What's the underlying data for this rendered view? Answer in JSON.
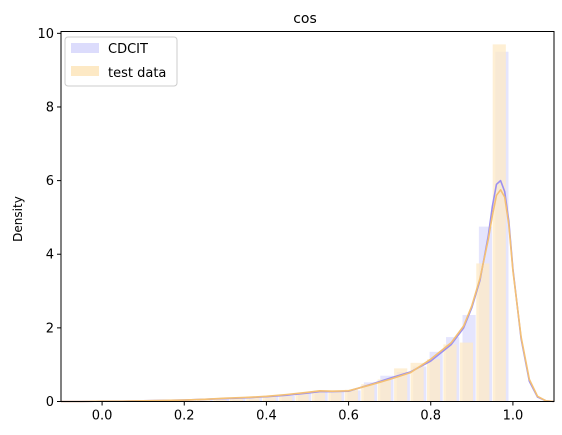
{
  "chart_data": {
    "type": "histogram-with-density",
    "title": "cos",
    "xlabel": "",
    "ylabel": "Density",
    "xlim": [
      -0.1,
      1.1
    ],
    "ylim": [
      0,
      10.05
    ],
    "xticks": [
      0.0,
      0.2,
      0.4,
      0.6,
      0.8,
      1.0
    ],
    "xtick_labels": [
      "0.0",
      "0.2",
      "0.4",
      "0.6",
      "0.8",
      "1.0"
    ],
    "yticks": [
      0,
      2,
      4,
      6,
      8,
      10
    ],
    "ytick_labels": [
      "0",
      "2",
      "4",
      "6",
      "8",
      "10"
    ],
    "grid": false,
    "legend_position": "upper-left",
    "bin_edges": [
      -0.09,
      -0.05,
      -0.01,
      0.03,
      0.07,
      0.11,
      0.15,
      0.19,
      0.23,
      0.27,
      0.31,
      0.35,
      0.39,
      0.43,
      0.47,
      0.51,
      0.55,
      0.59,
      0.63,
      0.67,
      0.71,
      0.75,
      0.79,
      0.83,
      0.87,
      0.91,
      0.95,
      0.99
    ],
    "series": [
      {
        "name": "CDCIT",
        "color": "#9b8ff0",
        "bar_color": "#dcdcfc",
        "hist": [
          0.0,
          0.0,
          0.0,
          0.01,
          0.02,
          0.02,
          0.04,
          0.05,
          0.06,
          0.08,
          0.1,
          0.12,
          0.14,
          0.15,
          0.22,
          0.3,
          0.27,
          0.3,
          0.52,
          0.7,
          0.8,
          0.95,
          1.35,
          1.75,
          2.35,
          4.75,
          9.5
        ],
        "kde_x": [
          -0.1,
          -0.05,
          0.0,
          0.05,
          0.1,
          0.15,
          0.2,
          0.25,
          0.3,
          0.35,
          0.4,
          0.45,
          0.5,
          0.53,
          0.56,
          0.6,
          0.65,
          0.7,
          0.75,
          0.8,
          0.85,
          0.88,
          0.9,
          0.92,
          0.94,
          0.95,
          0.96,
          0.97,
          0.98,
          0.99,
          1.0,
          1.02,
          1.04,
          1.06,
          1.08,
          1.1
        ],
        "kde_y": [
          0.0,
          0.0,
          0.01,
          0.01,
          0.02,
          0.03,
          0.04,
          0.06,
          0.08,
          0.1,
          0.13,
          0.17,
          0.23,
          0.27,
          0.27,
          0.28,
          0.45,
          0.63,
          0.8,
          1.1,
          1.55,
          2.0,
          2.55,
          3.3,
          4.5,
          5.3,
          5.9,
          6.0,
          5.7,
          4.9,
          3.6,
          1.7,
          0.55,
          0.12,
          0.02,
          0.0
        ]
      },
      {
        "name": "test data",
        "color": "#f4c075",
        "bar_color": "#fde9c5",
        "hist": [
          0.0,
          0.0,
          0.0,
          0.01,
          0.02,
          0.03,
          0.04,
          0.05,
          0.07,
          0.08,
          0.1,
          0.13,
          0.15,
          0.14,
          0.2,
          0.28,
          0.3,
          0.32,
          0.47,
          0.6,
          0.9,
          1.05,
          1.15,
          1.55,
          1.6,
          3.75,
          9.7
        ],
        "kde_x": [
          -0.1,
          -0.05,
          0.0,
          0.05,
          0.1,
          0.15,
          0.2,
          0.25,
          0.3,
          0.35,
          0.4,
          0.45,
          0.5,
          0.53,
          0.56,
          0.6,
          0.65,
          0.7,
          0.75,
          0.8,
          0.85,
          0.88,
          0.9,
          0.92,
          0.94,
          0.95,
          0.96,
          0.97,
          0.98,
          0.99,
          1.0,
          1.02,
          1.04,
          1.06,
          1.08,
          1.1
        ],
        "kde_y": [
          0.0,
          0.0,
          0.01,
          0.01,
          0.02,
          0.03,
          0.04,
          0.06,
          0.09,
          0.11,
          0.14,
          0.19,
          0.25,
          0.29,
          0.28,
          0.29,
          0.44,
          0.6,
          0.78,
          1.15,
          1.6,
          2.05,
          2.6,
          3.35,
          4.4,
          5.05,
          5.6,
          5.75,
          5.55,
          4.8,
          3.55,
          1.75,
          0.6,
          0.14,
          0.02,
          0.0
        ]
      }
    ]
  }
}
